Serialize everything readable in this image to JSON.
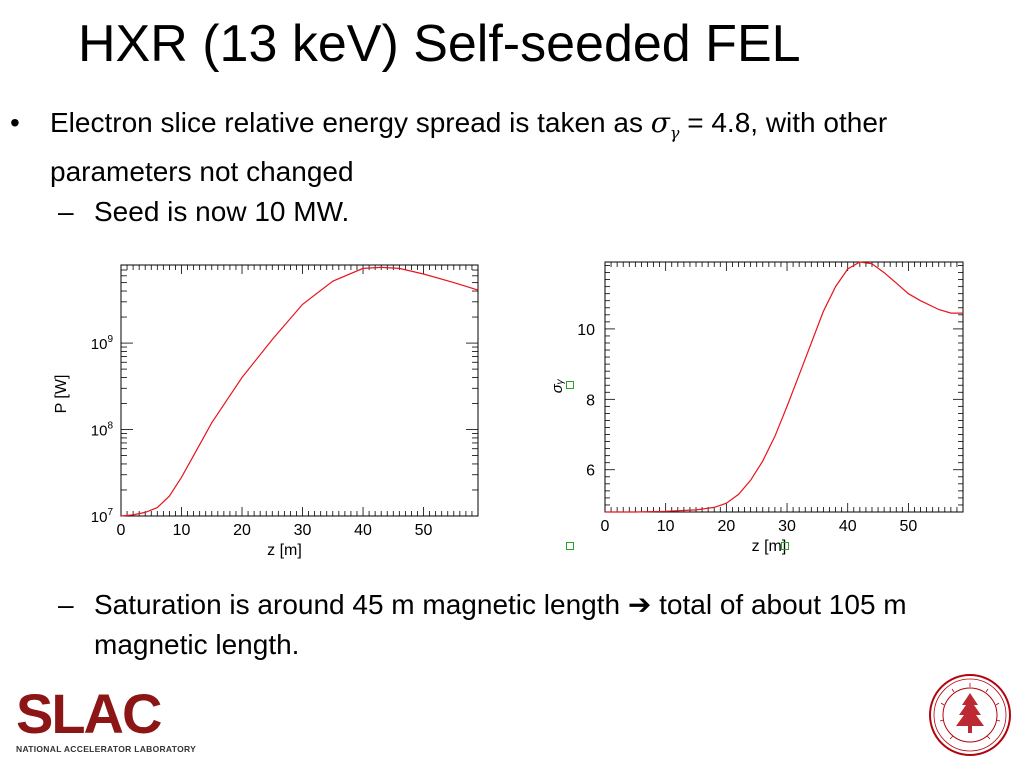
{
  "slide": {
    "title": "HXR (13 keV) Self-seeded FEL",
    "bullet_symbol": "•",
    "dash_symbol": "–",
    "bullet1_pre": "Electron slice relative energy spread is taken as ",
    "sigma_symbol": "σ",
    "sigma_sub": "γ",
    "bullet1_post": " = 4.8, with other parameters not changed",
    "sub1": "Seed is now 10 MW.",
    "sub2": "Saturation is around 45 m magnetic length ➔ total of about 105 m magnetic length."
  },
  "chart_data": [
    {
      "type": "line",
      "xlabel": "z [m]",
      "ylabel": "P [W]",
      "xlim": [
        0,
        59
      ],
      "ylim": [
        10000000,
        8000000000
      ],
      "yscale": "log",
      "x_ticks": [
        "0",
        "10",
        "20",
        "30",
        "40",
        "50"
      ],
      "y_ticks": [
        "10^7",
        "10^8",
        "10^9"
      ],
      "line_color": "#e8141e",
      "series": [
        {
          "x": [
            0,
            2,
            4,
            6,
            8,
            10,
            12,
            15,
            20,
            25,
            30,
            35,
            40,
            43,
            46,
            50,
            55,
            59
          ],
          "y": [
            10000000,
            10300000,
            11000000,
            12500000,
            17000000,
            28000000,
            50000000,
            120000000,
            400000000,
            1100000000,
            2800000000,
            5200000000,
            7300000000,
            7500000000,
            7300000000,
            6300000000,
            5000000000,
            4100000000
          ]
        }
      ]
    },
    {
      "type": "line",
      "xlabel": "z [m]",
      "ylabel": "σᵧ",
      "xlim": [
        0,
        59
      ],
      "ylim": [
        4.8,
        11.9
      ],
      "x_ticks": [
        "0",
        "10",
        "20",
        "30",
        "40",
        "50"
      ],
      "y_ticks": [
        "6",
        "8",
        "10"
      ],
      "line_color": "#e8141e",
      "marker_color": "#2aa12a",
      "series": [
        {
          "x": [
            0,
            5,
            10,
            15,
            18,
            20,
            22,
            24,
            26,
            28,
            30,
            32,
            34,
            36,
            38,
            40,
            42,
            44,
            46,
            48,
            50,
            52,
            55,
            57,
            59
          ],
          "y": [
            4.8,
            4.8,
            4.82,
            4.86,
            4.93,
            5.05,
            5.3,
            5.7,
            6.25,
            6.95,
            7.8,
            8.7,
            9.6,
            10.5,
            11.2,
            11.7,
            11.9,
            11.85,
            11.6,
            11.3,
            11.0,
            10.8,
            10.55,
            10.45,
            10.45
          ]
        }
      ]
    }
  ]
}
